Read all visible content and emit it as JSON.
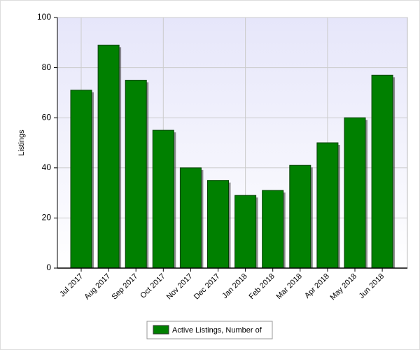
{
  "chart_data": {
    "type": "bar",
    "y_label": "Listings",
    "categories": [
      "Jul 2017",
      "Aug 2017",
      "Sep 2017",
      "Oct 2017",
      "Nov 2017",
      "Dec 2017",
      "Jan 2018",
      "Feb 2018",
      "Mar 2018",
      "Apr 2018",
      "May 2018",
      "Jun 2018"
    ],
    "series": [
      {
        "name": "Active Listings, Number of",
        "color": "#008000",
        "values": [
          71,
          89,
          75,
          55,
          40,
          35,
          29,
          31,
          41,
          50,
          60,
          77
        ]
      }
    ],
    "ylim": [
      0,
      100
    ],
    "yticks": [
      0,
      20,
      40,
      60,
      80,
      100
    ],
    "grid": true,
    "legend": "bottom"
  }
}
